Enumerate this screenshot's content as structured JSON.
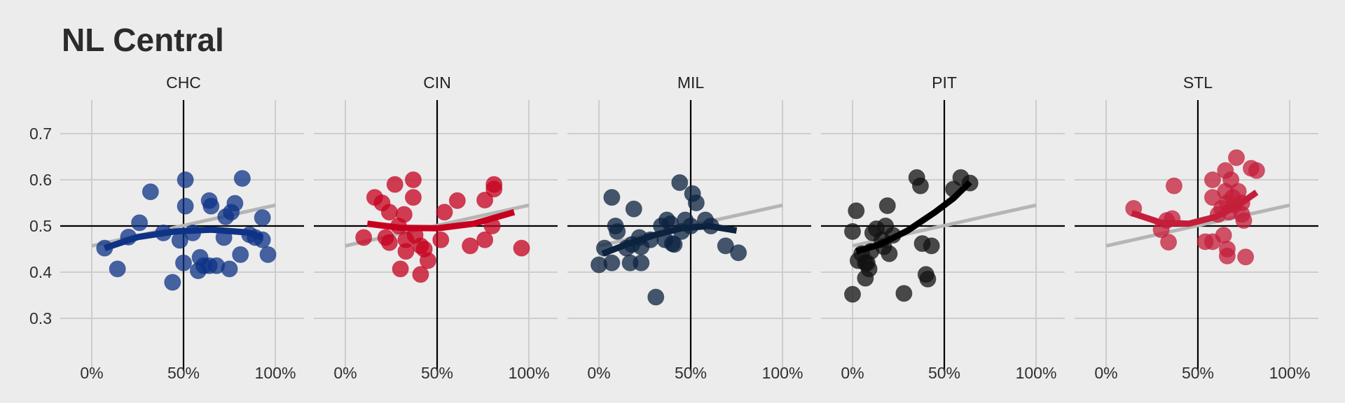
{
  "chart_data": {
    "type": "scatter",
    "title": "NL Central",
    "xlabel": "",
    "ylabel": "",
    "x_format": "percent",
    "xlim": [
      -0.05,
      1.16
    ],
    "ylim": [
      0.23,
      0.78
    ],
    "x_ticks": [
      0,
      0.5,
      1
    ],
    "x_tick_labels": [
      "0%",
      "50%",
      "100%"
    ],
    "y_ticks": [
      0.3,
      0.4,
      0.5,
      0.6,
      0.7
    ],
    "y_tick_labels": [
      "0.3",
      "0.4",
      "0.5",
      "0.6",
      "0.7"
    ],
    "reference_lines": {
      "x": 0.5,
      "y": 0.5
    },
    "grid": true,
    "legend": "none",
    "overall_trend": {
      "from": [
        0,
        0.457
      ],
      "to": [
        1,
        0.545
      ],
      "color": "#b5b5b5"
    },
    "panels": [
      {
        "name": "CHC",
        "color": "#0e3386",
        "fit_color": "#0e3386",
        "points": [
          [
            0.07,
            0.452
          ],
          [
            0.14,
            0.407
          ],
          [
            0.2,
            0.476
          ],
          [
            0.26,
            0.507
          ],
          [
            0.32,
            0.574
          ],
          [
            0.39,
            0.485
          ],
          [
            0.44,
            0.378
          ],
          [
            0.48,
            0.469
          ],
          [
            0.5,
            0.42
          ],
          [
            0.51,
            0.6
          ],
          [
            0.51,
            0.543
          ],
          [
            0.55,
            0.485
          ],
          [
            0.58,
            0.403
          ],
          [
            0.59,
            0.432
          ],
          [
            0.61,
            0.414
          ],
          [
            0.64,
            0.414
          ],
          [
            0.64,
            0.555
          ],
          [
            0.65,
            0.543
          ],
          [
            0.68,
            0.414
          ],
          [
            0.72,
            0.475
          ],
          [
            0.73,
            0.52
          ],
          [
            0.75,
            0.407
          ],
          [
            0.76,
            0.53
          ],
          [
            0.78,
            0.549
          ],
          [
            0.81,
            0.438
          ],
          [
            0.82,
            0.603
          ],
          [
            0.86,
            0.481
          ],
          [
            0.89,
            0.475
          ],
          [
            0.93,
            0.47
          ],
          [
            0.93,
            0.518
          ],
          [
            0.96,
            0.438
          ]
        ],
        "fit": [
          [
            0.07,
            0.452
          ],
          [
            0.25,
            0.476
          ],
          [
            0.45,
            0.488
          ],
          [
            0.65,
            0.492
          ],
          [
            0.85,
            0.486
          ],
          [
            0.93,
            0.475
          ]
        ]
      },
      {
        "name": "CIN",
        "color": "#c6011f",
        "fit_color": "#c6011f",
        "points": [
          [
            0.1,
            0.475
          ],
          [
            0.16,
            0.562
          ],
          [
            0.2,
            0.55
          ],
          [
            0.22,
            0.475
          ],
          [
            0.24,
            0.464
          ],
          [
            0.24,
            0.53
          ],
          [
            0.27,
            0.59
          ],
          [
            0.29,
            0.5
          ],
          [
            0.3,
            0.407
          ],
          [
            0.32,
            0.525
          ],
          [
            0.33,
            0.445
          ],
          [
            0.33,
            0.47
          ],
          [
            0.37,
            0.6
          ],
          [
            0.37,
            0.562
          ],
          [
            0.38,
            0.48
          ],
          [
            0.41,
            0.395
          ],
          [
            0.41,
            0.457
          ],
          [
            0.43,
            0.45
          ],
          [
            0.45,
            0.425
          ],
          [
            0.52,
            0.47
          ],
          [
            0.54,
            0.53
          ],
          [
            0.61,
            0.555
          ],
          [
            0.68,
            0.457
          ],
          [
            0.76,
            0.47
          ],
          [
            0.76,
            0.556
          ],
          [
            0.8,
            0.5
          ],
          [
            0.81,
            0.59
          ],
          [
            0.81,
            0.58
          ],
          [
            0.96,
            0.452
          ]
        ],
        "fit": [
          [
            0.12,
            0.505
          ],
          [
            0.3,
            0.496
          ],
          [
            0.5,
            0.495
          ],
          [
            0.7,
            0.505
          ],
          [
            0.92,
            0.53
          ]
        ]
      },
      {
        "name": "MIL",
        "color": "#0c2340",
        "fit_color": "#0c2340",
        "points": [
          [
            0,
            0.416
          ],
          [
            0.03,
            0.452
          ],
          [
            0.07,
            0.42
          ],
          [
            0.07,
            0.562
          ],
          [
            0.09,
            0.5
          ],
          [
            0.1,
            0.488
          ],
          [
            0.15,
            0.452
          ],
          [
            0.17,
            0.42
          ],
          [
            0.18,
            0.46
          ],
          [
            0.19,
            0.537
          ],
          [
            0.22,
            0.475
          ],
          [
            0.23,
            0.455
          ],
          [
            0.23,
            0.42
          ],
          [
            0.28,
            0.47
          ],
          [
            0.31,
            0.346
          ],
          [
            0.34,
            0.5
          ],
          [
            0.36,
            0.47
          ],
          [
            0.37,
            0.513
          ],
          [
            0.39,
            0.505
          ],
          [
            0.4,
            0.462
          ],
          [
            0.41,
            0.46
          ],
          [
            0.44,
            0.594
          ],
          [
            0.45,
            0.488
          ],
          [
            0.47,
            0.513
          ],
          [
            0.5,
            0.5
          ],
          [
            0.51,
            0.57
          ],
          [
            0.53,
            0.55
          ],
          [
            0.58,
            0.513
          ],
          [
            0.61,
            0.5
          ],
          [
            0.69,
            0.457
          ],
          [
            0.76,
            0.442
          ]
        ],
        "fit": [
          [
            0.02,
            0.44
          ],
          [
            0.15,
            0.46
          ],
          [
            0.3,
            0.48
          ],
          [
            0.45,
            0.495
          ],
          [
            0.6,
            0.5
          ],
          [
            0.75,
            0.49
          ]
        ]
      },
      {
        "name": "PIT",
        "color": "#111111",
        "fit_color": "#000000",
        "points": [
          [
            0,
            0.352
          ],
          [
            0,
            0.488
          ],
          [
            0.02,
            0.533
          ],
          [
            0.03,
            0.425
          ],
          [
            0.05,
            0.44
          ],
          [
            0.07,
            0.387
          ],
          [
            0.07,
            0.42
          ],
          [
            0.08,
            0.42
          ],
          [
            0.09,
            0.407
          ],
          [
            0.1,
            0.445
          ],
          [
            0.11,
            0.485
          ],
          [
            0.13,
            0.494
          ],
          [
            0.16,
            0.47
          ],
          [
            0.17,
            0.455
          ],
          [
            0.18,
            0.5
          ],
          [
            0.19,
            0.544
          ],
          [
            0.2,
            0.44
          ],
          [
            0.22,
            0.48
          ],
          [
            0.28,
            0.354
          ],
          [
            0.35,
            0.605
          ],
          [
            0.37,
            0.587
          ],
          [
            0.38,
            0.462
          ],
          [
            0.4,
            0.395
          ],
          [
            0.41,
            0.385
          ],
          [
            0.43,
            0.457
          ],
          [
            0.55,
            0.58
          ],
          [
            0.59,
            0.605
          ],
          [
            0.64,
            0.593
          ]
        ],
        "fit": [
          [
            0.02,
            0.445
          ],
          [
            0.15,
            0.46
          ],
          [
            0.3,
            0.49
          ],
          [
            0.45,
            0.53
          ],
          [
            0.55,
            0.56
          ],
          [
            0.64,
            0.595
          ]
        ]
      },
      {
        "name": "STL",
        "color": "#c41e3a",
        "fit_color": "#c41e3a",
        "points": [
          [
            0.15,
            0.538
          ],
          [
            0.3,
            0.492
          ],
          [
            0.33,
            0.512
          ],
          [
            0.34,
            0.465
          ],
          [
            0.36,
            0.516
          ],
          [
            0.37,
            0.587
          ],
          [
            0.54,
            0.466
          ],
          [
            0.58,
            0.466
          ],
          [
            0.58,
            0.6
          ],
          [
            0.58,
            0.562
          ],
          [
            0.61,
            0.525
          ],
          [
            0.63,
            0.538
          ],
          [
            0.64,
            0.48
          ],
          [
            0.65,
            0.575
          ],
          [
            0.65,
            0.62
          ],
          [
            0.66,
            0.55
          ],
          [
            0.66,
            0.45
          ],
          [
            0.66,
            0.435
          ],
          [
            0.67,
            0.53
          ],
          [
            0.68,
            0.6
          ],
          [
            0.69,
            0.562
          ],
          [
            0.7,
            0.545
          ],
          [
            0.71,
            0.648
          ],
          [
            0.72,
            0.575
          ],
          [
            0.74,
            0.525
          ],
          [
            0.74,
            0.55
          ],
          [
            0.75,
            0.512
          ],
          [
            0.76,
            0.433
          ],
          [
            0.79,
            0.625
          ],
          [
            0.82,
            0.62
          ]
        ],
        "fit": [
          [
            0.14,
            0.528
          ],
          [
            0.3,
            0.507
          ],
          [
            0.45,
            0.505
          ],
          [
            0.6,
            0.52
          ],
          [
            0.72,
            0.545
          ],
          [
            0.82,
            0.573
          ]
        ]
      }
    ]
  }
}
